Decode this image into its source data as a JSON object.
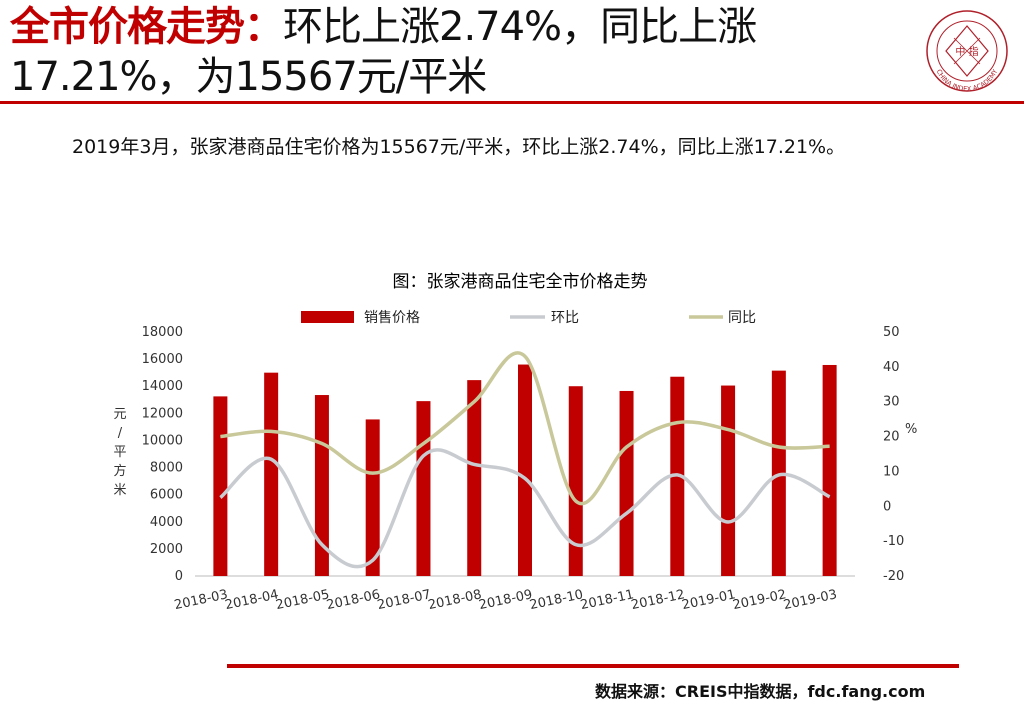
{
  "header": {
    "title_highlight": "全市价格走势：",
    "title_rest_line1": "环比上涨2.74%，同比上涨",
    "title_line2": "17.21%，为15567元/平米"
  },
  "summary": "2019年3月，张家港商品住宅价格为15567元/平米，环比上涨2.74%，同比上涨17.21%。",
  "logo": {
    "icon": "china-index-academy-seal",
    "text": "CHINA INDEX ACADEMY",
    "center_text": "中 指"
  },
  "footer": {
    "source": "数据来源：CREIS中指数据，fdc.fang.com"
  },
  "colors": {
    "accent": "#c00000",
    "bar": "#c00000",
    "mom_line": "#c8ccd0",
    "yoy_line": "#c8c89a"
  },
  "chart_data": {
    "type": "bar",
    "title": "图：张家港商品住宅全市价格走势",
    "categories": [
      "2018-03",
      "2018-04",
      "2018-05",
      "2018-06",
      "2018-07",
      "2018-08",
      "2018-09",
      "2018-10",
      "2018-11",
      "2018-12",
      "2019-01",
      "2019-02",
      "2019-03"
    ],
    "series": [
      {
        "name": "销售价格",
        "type": "bar",
        "axis": "left",
        "values": [
          13250,
          15000,
          13350,
          11550,
          12900,
          14450,
          15600,
          14000,
          13650,
          14700,
          14050,
          15150,
          15567
        ]
      },
      {
        "name": "环比",
        "type": "line",
        "axis": "right",
        "values": [
          2.5,
          13.5,
          -11,
          -15.5,
          14.5,
          12,
          8,
          -11,
          -2,
          9,
          -4.5,
          9,
          2.74
        ]
      },
      {
        "name": "同比",
        "type": "line",
        "axis": "right",
        "values": [
          20,
          21.5,
          18,
          9.5,
          18,
          30,
          43,
          1.5,
          17,
          24,
          22,
          17,
          17.21
        ]
      }
    ],
    "ylabel_left": "元/平方米",
    "ylabel_right": "%",
    "ylim_left": [
      0,
      18000
    ],
    "yticks_left": [
      "0",
      "2000",
      "4000",
      "6000",
      "8000",
      "10000",
      "12000",
      "14000",
      "16000",
      "18000"
    ],
    "ylim_right": [
      -20,
      50
    ],
    "yticks_right": [
      "-20",
      "-10",
      "0",
      "10",
      "20",
      "30",
      "40",
      "50"
    ],
    "legend_position": "top",
    "grid": false
  }
}
